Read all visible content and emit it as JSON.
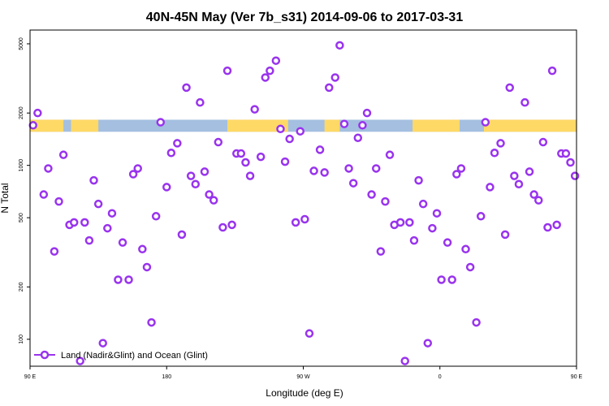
{
  "chart_data": {
    "type": "scatter",
    "title": "40N-45N May (Ver 7b_s31)   2014-09-06 to 2017-03-31",
    "xlabel": "Longitude (deg E)",
    "ylabel": "N Total",
    "xlim": [
      90,
      450
    ],
    "ylim": [
      70,
      6000
    ],
    "y_scale": "log",
    "x_ticks": [
      {
        "value": 90,
        "label": "90 E"
      },
      {
        "value": 180,
        "label": "180"
      },
      {
        "value": 270,
        "label": "90 W"
      },
      {
        "value": 360,
        "label": "0"
      },
      {
        "value": 450,
        "label": "90 E"
      },
      {
        "value": 540,
        "label": "180"
      }
    ],
    "y_ticks": [
      {
        "value": 100,
        "label": "100"
      },
      {
        "value": 200,
        "label": "200"
      },
      {
        "value": 500,
        "label": "500"
      },
      {
        "value": 1000,
        "label": "1000"
      },
      {
        "value": 2000,
        "label": "2000"
      },
      {
        "value": 5000,
        "label": "5000"
      }
    ],
    "land_ocean_band": {
      "y_range": [
        1560,
        1830
      ],
      "land_color": "#ffd966",
      "ocean_color": "#a4bfe0",
      "land_segments": [
        [
          90,
          112
        ],
        [
          117,
          135
        ],
        [
          220,
          260
        ],
        [
          284,
          294
        ],
        [
          342,
          373
        ],
        [
          389,
          464
        ],
        [
          470,
          520
        ]
      ]
    },
    "series": [
      {
        "name": "Land (Nadir&Glint) and Ocean (Glint)",
        "color": "#9933ee",
        "x": [
          92,
          95,
          99,
          102,
          106,
          109,
          112,
          116,
          119,
          123,
          126,
          129,
          132,
          135,
          138,
          141,
          144,
          148,
          151,
          155,
          158,
          161,
          164,
          167,
          170,
          173,
          176,
          180,
          183,
          187,
          190,
          193,
          196,
          199,
          202,
          205,
          208,
          211,
          214,
          217,
          220,
          223,
          226,
          229,
          232,
          235,
          238,
          242,
          245,
          248,
          252,
          255,
          258,
          261,
          265,
          268,
          271,
          274,
          277,
          281,
          284,
          287,
          291,
          294,
          297,
          300,
          303,
          306,
          309,
          312,
          315,
          318,
          321,
          324,
          327,
          330,
          334,
          337,
          340,
          343,
          346,
          349,
          352,
          355,
          358,
          361,
          365,
          368,
          371,
          374,
          377,
          380,
          384,
          387,
          390,
          393,
          396,
          400,
          403,
          406,
          409,
          412,
          416,
          419,
          422,
          425,
          428,
          431,
          434,
          437,
          440,
          443,
          446,
          449
        ],
        "y": [
          1700,
          2000,
          680,
          960,
          320,
          620,
          1150,
          455,
          470,
          75,
          470,
          370,
          820,
          600,
          95,
          435,
          530,
          220,
          360,
          220,
          890,
          960,
          330,
          260,
          125,
          510,
          1770,
          750,
          1180,
          1340,
          400,
          2800,
          870,
          780,
          2300,
          920,
          680,
          630,
          1360,
          440,
          3500,
          455,
          1170,
          1170,
          1040,
          870,
          2100,
          1120,
          3200,
          3500,
          4000,
          1620,
          1050,
          1420,
          470,
          1570,
          490,
          108,
          930,
          1230,
          910,
          2800,
          3200,
          4900,
          1730,
          960,
          790,
          1440,
          1700,
          2000,
          680,
          960,
          320,
          620,
          1150,
          455,
          470,
          75,
          470,
          370,
          820,
          600,
          95,
          435,
          530,
          220,
          360,
          220,
          890,
          960,
          330,
          260,
          125,
          510,
          1770,
          750,
          1180,
          1340,
          400,
          2800,
          870,
          780,
          2300,
          920,
          680,
          630,
          1360,
          440,
          3500,
          455,
          1170,
          1170,
          1040,
          870
        ]
      }
    ],
    "legend_position": "bottom-left"
  }
}
